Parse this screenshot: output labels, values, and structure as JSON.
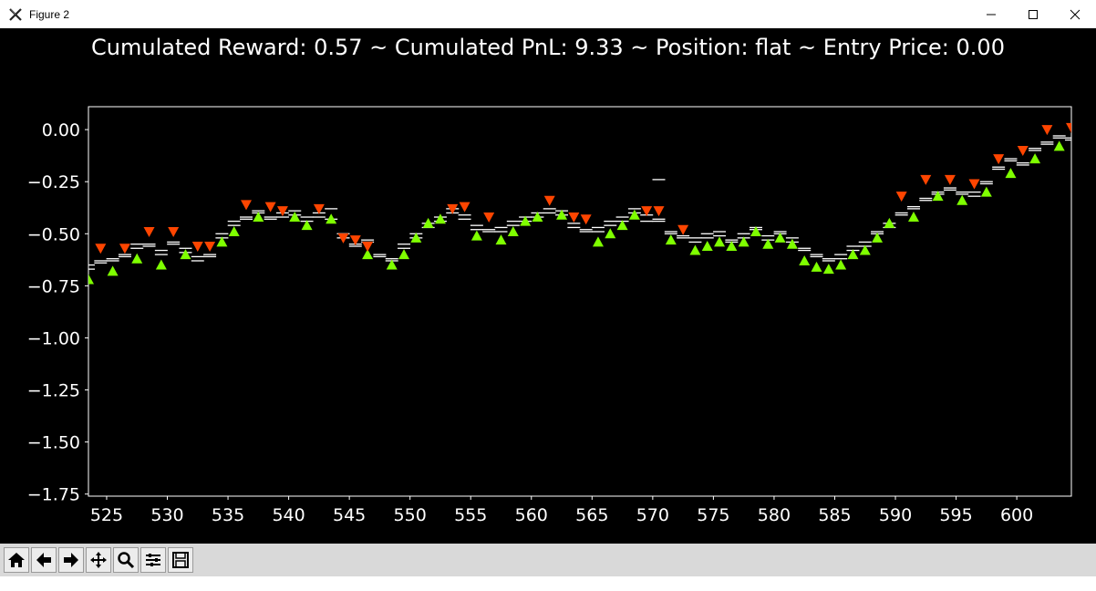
{
  "window": {
    "title": "Figure 2",
    "icon": "matplotlib-x-icon",
    "controls": [
      "minimize-icon",
      "maximize-icon",
      "close-icon"
    ]
  },
  "figure_title": "Cumulated Reward: 0.57 ~ Cumulated PnL: 9.33 ~ Position: flat ~ Entry Price: 0.00",
  "toolbar": {
    "buttons": [
      "home-icon",
      "back-arrow-icon",
      "forward-arrow-icon",
      "pan-icon",
      "zoom-icon",
      "configure-subplots-icon",
      "save-icon"
    ]
  },
  "colors": {
    "background": "#000000",
    "buy_marker": "#7fff00",
    "sell_marker": "#ff4500",
    "price_level": "#ffffff",
    "axes": "#ffffff"
  },
  "chart_data": {
    "type": "scatter",
    "title": "Cumulated Reward: 0.57 ~ Cumulated PnL: 9.33 ~ Position: flat ~ Entry Price: 0.00",
    "xlabel": "",
    "ylabel": "",
    "xlim": [
      523.5,
      604.5
    ],
    "ylim": [
      -1.76,
      0.11
    ],
    "xticks": [
      525,
      530,
      535,
      540,
      545,
      550,
      555,
      560,
      565,
      570,
      575,
      580,
      585,
      590,
      595,
      600
    ],
    "xtick_labels": [
      "525",
      "530",
      "535",
      "540",
      "545",
      "550",
      "555",
      "560",
      "565",
      "570",
      "575",
      "580",
      "585",
      "590",
      "595",
      "600"
    ],
    "yticks": [
      0.0,
      -0.25,
      -0.5,
      -0.75,
      -1.0,
      -1.25,
      -1.5,
      -1.75
    ],
    "ytick_labels": [
      "0.00",
      "−0.25",
      "−0.50",
      "−0.75",
      "−1.00",
      "−1.25",
      "−1.50",
      "−1.75"
    ],
    "grid": false,
    "legend": "none",
    "x": [
      523.5,
      524.5,
      525.5,
      526.5,
      527.5,
      528.5,
      529.5,
      530.5,
      531.5,
      532.5,
      533.5,
      534.5,
      535.5,
      536.5,
      537.5,
      538.5,
      539.5,
      540.5,
      541.5,
      542.5,
      543.5,
      544.5,
      545.5,
      546.5,
      547.5,
      548.5,
      549.5,
      550.5,
      551.5,
      552.5,
      553.5,
      554.5,
      555.5,
      556.5,
      557.5,
      558.5,
      559.5,
      560.5,
      561.5,
      562.5,
      563.5,
      564.5,
      565.5,
      566.5,
      567.5,
      568.5,
      569.5,
      570.5,
      571.5,
      572.5,
      573.5,
      574.5,
      575.5,
      576.5,
      577.5,
      578.5,
      579.5,
      580.5,
      581.5,
      582.5,
      583.5,
      584.5,
      585.5,
      586.5,
      587.5,
      588.5,
      589.5,
      590.5,
      591.5,
      592.5,
      593.5,
      594.5,
      595.5,
      596.5,
      597.5,
      598.5,
      599.5,
      600.5,
      601.5,
      602.5,
      603.5,
      604.5
    ],
    "series": [
      {
        "values": [
          -0.65,
          -0.63,
          -0.62,
          -0.6,
          -0.55,
          -0.55,
          -0.58,
          -0.54,
          -0.57,
          -0.61,
          -0.6,
          -0.5,
          -0.44,
          -0.42,
          -0.39,
          -0.42,
          -0.4,
          -0.39,
          -0.42,
          -0.4,
          -0.38,
          -0.5,
          -0.55,
          -0.53,
          -0.6,
          -0.62,
          -0.55,
          -0.5,
          -0.45,
          -0.42,
          -0.38,
          -0.41,
          -0.46,
          -0.48,
          -0.47,
          -0.44,
          -0.42,
          -0.4,
          -0.38,
          -0.39,
          -0.45,
          -0.48,
          -0.47,
          -0.44,
          -0.42,
          -0.38,
          -0.41,
          -0.43,
          -0.49,
          -0.51,
          -0.52,
          -0.5,
          -0.49,
          -0.53,
          -0.5,
          -0.47,
          -0.51,
          -0.49,
          -0.52,
          -0.57,
          -0.6,
          -0.62,
          -0.6,
          -0.56,
          -0.54,
          -0.49,
          -0.45,
          -0.4,
          -0.37,
          -0.33,
          -0.3,
          -0.28,
          -0.3,
          -0.3,
          -0.25,
          -0.18,
          -0.14,
          -0.16,
          -0.09,
          -0.06,
          -0.03,
          -0.04
        ]
      },
      {
        "values": [
          -0.67,
          -0.64,
          -0.63,
          -0.61,
          -0.57,
          -0.56,
          -0.6,
          -0.55,
          -0.59,
          -0.63,
          -0.61,
          -0.52,
          -0.46,
          -0.43,
          -0.4,
          -0.43,
          -0.42,
          -0.41,
          -0.44,
          -0.42,
          -0.43,
          -0.52,
          -0.56,
          -0.54,
          -0.61,
          -0.63,
          -0.57,
          -0.52,
          -0.47,
          -0.44,
          -0.4,
          -0.43,
          -0.48,
          -0.49,
          -0.49,
          -0.46,
          -0.44,
          -0.42,
          -0.4,
          -0.41,
          -0.47,
          -0.49,
          -0.49,
          -0.46,
          -0.44,
          -0.4,
          -0.44,
          -0.44,
          -0.5,
          -0.52,
          -0.54,
          -0.52,
          -0.51,
          -0.54,
          -0.52,
          -0.48,
          -0.53,
          -0.5,
          -0.54,
          -0.58,
          -0.61,
          -0.63,
          -0.62,
          -0.58,
          -0.56,
          -0.5,
          -0.47,
          -0.41,
          -0.38,
          -0.34,
          -0.31,
          -0.29,
          -0.31,
          -0.32,
          -0.26,
          -0.19,
          -0.15,
          -0.17,
          -0.1,
          -0.07,
          -0.04,
          -0.05
        ]
      },
      {
        "values": [
          -0.72,
          null,
          -0.68,
          null,
          -0.62,
          null,
          -0.65,
          null,
          -0.6,
          null,
          null,
          -0.54,
          -0.49,
          null,
          -0.42,
          null,
          null,
          -0.42,
          -0.46,
          null,
          -0.43,
          null,
          null,
          -0.6,
          null,
          -0.65,
          -0.6,
          -0.52,
          -0.45,
          -0.43,
          null,
          null,
          -0.51,
          null,
          -0.53,
          -0.49,
          -0.44,
          -0.42,
          null,
          -0.41,
          null,
          null,
          -0.54,
          -0.5,
          -0.46,
          -0.41,
          null,
          null,
          -0.53,
          null,
          -0.58,
          -0.56,
          -0.54,
          -0.56,
          -0.54,
          -0.49,
          -0.55,
          -0.52,
          -0.55,
          -0.63,
          -0.66,
          -0.67,
          -0.65,
          -0.6,
          -0.58,
          -0.52,
          -0.45,
          null,
          -0.42,
          null,
          -0.32,
          null,
          -0.34,
          null,
          -0.3,
          null,
          -0.21,
          null,
          -0.14,
          null,
          -0.08,
          null
        ]
      },
      {
        "values": [
          null,
          -0.57,
          null,
          -0.57,
          null,
          -0.49,
          null,
          -0.49,
          null,
          -0.56,
          -0.56,
          null,
          null,
          -0.36,
          null,
          -0.37,
          -0.39,
          null,
          null,
          -0.38,
          null,
          -0.52,
          -0.53,
          -0.56,
          null,
          null,
          null,
          null,
          null,
          null,
          -0.38,
          -0.37,
          null,
          -0.42,
          null,
          null,
          null,
          null,
          -0.34,
          null,
          -0.42,
          -0.43,
          null,
          null,
          null,
          null,
          -0.39,
          -0.39,
          null,
          -0.48,
          null,
          null,
          null,
          null,
          null,
          null,
          null,
          null,
          null,
          null,
          null,
          null,
          null,
          null,
          null,
          null,
          null,
          -0.32,
          null,
          -0.24,
          null,
          -0.24,
          null,
          -0.26,
          null,
          -0.14,
          null,
          -0.1,
          null,
          0.0,
          null,
          0.01
        ]
      }
    ],
    "extra_levels": [
      {
        "x": 570.5,
        "y": -0.24
      }
    ]
  }
}
